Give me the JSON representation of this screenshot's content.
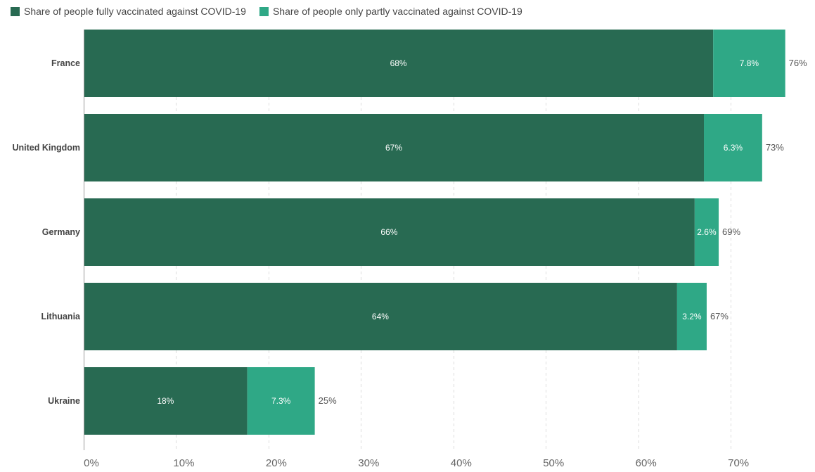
{
  "chart_data": {
    "type": "bar",
    "orientation": "horizontal",
    "stacked": true,
    "categories": [
      "France",
      "United Kingdom",
      "Germany",
      "Lithuania",
      "Ukraine"
    ],
    "series": [
      {
        "name": "Share of people fully vaccinated against COVID-19",
        "color": "#286a52",
        "values": [
          68.1,
          67.1,
          66.1,
          64.2,
          17.7
        ],
        "labels": [
          "68%",
          "67%",
          "66%",
          "64%",
          "18%"
        ]
      },
      {
        "name": "Share of people only partly vaccinated against COVID-19",
        "color": "#2fa886",
        "values": [
          7.8,
          6.3,
          2.6,
          3.2,
          7.3
        ],
        "labels": [
          "7.8%",
          "6.3%",
          "2.6%",
          "3.2%",
          "7.3%"
        ]
      }
    ],
    "totals": [
      "76%",
      "73%",
      "69%",
      "67%",
      "25%"
    ],
    "xlim": [
      0,
      76
    ],
    "xticks": [
      0,
      10,
      20,
      30,
      40,
      50,
      60,
      70
    ],
    "xtick_labels": [
      "0%",
      "10%",
      "20%",
      "30%",
      "40%",
      "50%",
      "60%",
      "70%"
    ],
    "grid": true,
    "legend": "top-left",
    "title": "",
    "xlabel": "",
    "ylabel": ""
  }
}
